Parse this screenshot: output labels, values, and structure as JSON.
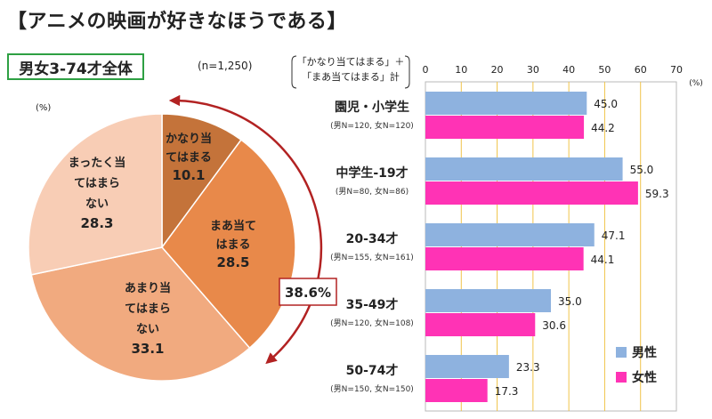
{
  "page": {
    "title": "【アニメの映画が好きなほうである】",
    "badge": "男女3-74才全体",
    "n_total": "(n=1,250)",
    "pie_unit": "(%)",
    "highlight_pct": "38.6%",
    "legend_box": [
      "「かなり当てはまる」＋",
      "「まあ当てはまる」計"
    ],
    "bar_unit": "(%)"
  },
  "chart_data": [
    {
      "type": "pie",
      "slices": [
        {
          "label_lines": [
            "かなり当",
            "てはまる"
          ],
          "value": 10.1,
          "value_label": "10.1",
          "color": "#c4733a"
        },
        {
          "label_lines": [
            "まあ当て",
            "はまる"
          ],
          "value": 28.5,
          "value_label": "28.5",
          "color": "#e8894a"
        },
        {
          "label_lines": [
            "あまり当",
            "てはまら",
            "ない"
          ],
          "value": 33.1,
          "value_label": "33.1",
          "color": "#f1aa7f"
        },
        {
          "label_lines": [
            "まったく当",
            "てはまら",
            "ない"
          ],
          "value": 28.3,
          "value_label": "28.3",
          "color": "#f8cdb5"
        }
      ]
    },
    {
      "type": "bar",
      "orientation": "horizontal",
      "xlim": [
        0,
        70
      ],
      "ticks": [
        0,
        10,
        20,
        30,
        40,
        50,
        60,
        70
      ],
      "gridlines": true,
      "legend_position": "bottom-right",
      "categories": [
        {
          "label": "園児・小学生",
          "n": "(男N=120, 女N=120)"
        },
        {
          "label": "中学生-19才",
          "n": "(男N=80, 女N=86)"
        },
        {
          "label": "20-34才",
          "n": "(男N=155, 女N=161)"
        },
        {
          "label": "35-49才",
          "n": "(男N=120, 女N=108)"
        },
        {
          "label": "50-74才",
          "n": "(男N=150, 女N=150)"
        }
      ],
      "series": [
        {
          "name": "男性",
          "color": "#8eb2df",
          "values": [
            45.0,
            55.0,
            47.1,
            35.0,
            23.3
          ],
          "labels": [
            "45.0",
            "55.0",
            "47.1",
            "35.0",
            "23.3"
          ]
        },
        {
          "name": "女性",
          "color": "#ff33b5",
          "values": [
            44.2,
            59.3,
            44.1,
            30.6,
            17.3
          ],
          "labels": [
            "44.2",
            "59.3",
            "44.1",
            "30.6",
            "17.3"
          ]
        }
      ]
    }
  ]
}
